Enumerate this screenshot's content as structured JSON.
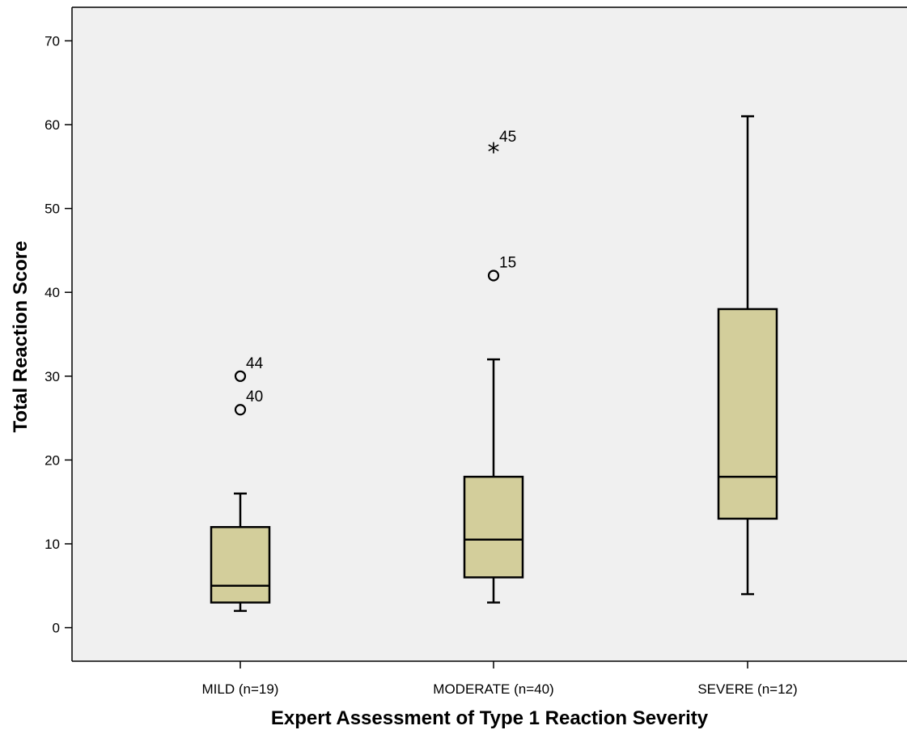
{
  "chart_data": {
    "type": "boxplot",
    "xlabel": "Expert Assessment of Type 1 Reaction Severity",
    "ylabel": "Total Reaction Score",
    "ylim": [
      -4,
      74
    ],
    "yticks": [
      0,
      10,
      20,
      30,
      40,
      50,
      60,
      70
    ],
    "grid": false,
    "colors": {
      "plot_bg": "#f0f0f0",
      "box_fill": "#d3ce9b",
      "stroke": "#000000"
    },
    "categories": [
      "MILD (n=19)",
      "MODERATE (n=40)",
      "SEVERE (n=12)"
    ],
    "boxes": [
      {
        "whisker_low": 2,
        "q1": 3,
        "median": 5,
        "q3": 12,
        "whisker_high": 16,
        "outliers": [
          {
            "value": 30,
            "label": "44",
            "marker": "circle"
          },
          {
            "value": 26,
            "label": "40",
            "marker": "circle"
          }
        ]
      },
      {
        "whisker_low": 3,
        "q1": 6,
        "median": 10.5,
        "q3": 18,
        "whisker_high": 32,
        "outliers": [
          {
            "value": 57,
            "label": "45",
            "marker": "star"
          },
          {
            "value": 42,
            "label": "15",
            "marker": "circle"
          }
        ]
      },
      {
        "whisker_low": 4,
        "q1": 13,
        "median": 18,
        "q3": 38,
        "whisker_high": 61,
        "outliers": []
      }
    ]
  }
}
